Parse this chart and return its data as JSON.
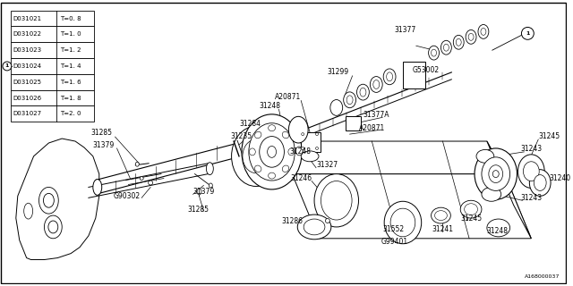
{
  "background_color": "#ffffff",
  "diagram_id": "A168000037",
  "table_rows": [
    [
      "D031021",
      "T=0. 8"
    ],
    [
      "D031022",
      "T=1. 0"
    ],
    [
      "D031023",
      "T=1. 2"
    ],
    [
      "D031024",
      "T=1. 4"
    ],
    [
      "D031025",
      "T=1. 6"
    ],
    [
      "D031026",
      "T=1. 8"
    ],
    [
      "D031027",
      "T=2. 0"
    ]
  ],
  "marker1_row": 3
}
